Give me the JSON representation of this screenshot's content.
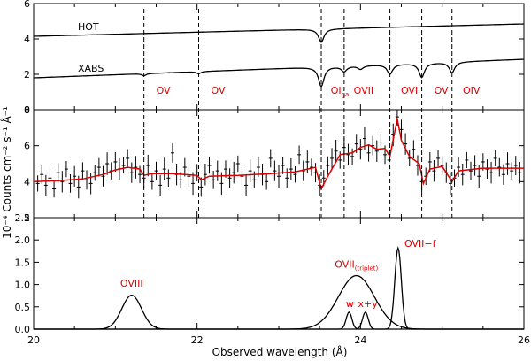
{
  "chart_data": [
    {
      "type": "line",
      "panel": "top",
      "ylim": [
        0,
        6
      ],
      "yticks": [
        "0",
        "2",
        "4",
        "6"
      ],
      "xlim": [
        20,
        26
      ],
      "series": [
        {
          "name": "HOT",
          "label": "HOT",
          "color": "#000000",
          "baseline_start": 4.15,
          "baseline_end": 4.85,
          "features": [
            {
              "center": 23.52,
              "depth": 0.75,
              "width": 0.04
            }
          ]
        },
        {
          "name": "XABS",
          "label": "XABS",
          "color": "#000000",
          "baseline_start": 1.8,
          "baseline_end": 2.85,
          "features": [
            {
              "center": 21.35,
              "depth": 0.12,
              "width": 0.03
            },
            {
              "center": 22.02,
              "depth": 0.12,
              "width": 0.03
            },
            {
              "center": 23.52,
              "depth": 1.1,
              "width": 0.04
            },
            {
              "center": 23.8,
              "depth": 0.3,
              "width": 0.04
            },
            {
              "center": 24.0,
              "depth": 0.2,
              "width": 0.04
            },
            {
              "center": 24.36,
              "depth": 0.55,
              "width": 0.04
            },
            {
              "center": 24.75,
              "depth": 0.8,
              "width": 0.04
            },
            {
              "center": 25.12,
              "depth": 0.6,
              "width": 0.04
            }
          ]
        }
      ],
      "line_ids": [
        {
          "label": "OV",
          "x": 21.35
        },
        {
          "label": "OV",
          "x": 22.02
        },
        {
          "label": "OI",
          "sub": "gal",
          "x": 23.52
        },
        {
          "label": "OVII",
          "x": 23.8
        },
        {
          "label": "OVI",
          "x": 24.36
        },
        {
          "label": "OV",
          "x": 24.75
        },
        {
          "label": "OIV",
          "x": 25.12
        }
      ]
    },
    {
      "type": "scatter",
      "panel": "middle",
      "ylabel": "10⁻⁴ Counts cm⁻² s⁻¹ Å⁻¹",
      "ylim": [
        2,
        8
      ],
      "yticks": [
        "2",
        "4",
        "6",
        "8"
      ],
      "xlim": [
        20,
        26
      ],
      "data_color": "#000000",
      "model_color": "#dd0000",
      "model_name": "model",
      "data_name": "data",
      "model": [
        [
          20.0,
          4.0
        ],
        [
          20.3,
          4.05
        ],
        [
          20.6,
          4.15
        ],
        [
          20.85,
          4.4
        ],
        [
          21.0,
          4.65
        ],
        [
          21.15,
          4.8
        ],
        [
          21.3,
          4.7
        ],
        [
          21.35,
          4.35
        ],
        [
          21.45,
          4.45
        ],
        [
          21.7,
          4.45
        ],
        [
          22.0,
          4.35
        ],
        [
          22.05,
          4.1
        ],
        [
          22.15,
          4.3
        ],
        [
          22.5,
          4.35
        ],
        [
          22.9,
          4.45
        ],
        [
          23.2,
          4.55
        ],
        [
          23.45,
          4.8
        ],
        [
          23.52,
          3.6
        ],
        [
          23.6,
          4.3
        ],
        [
          23.75,
          5.5
        ],
        [
          23.9,
          5.6
        ],
        [
          24.0,
          5.9
        ],
        [
          24.1,
          6.05
        ],
        [
          24.2,
          5.8
        ],
        [
          24.3,
          5.85
        ],
        [
          24.36,
          5.4
        ],
        [
          24.45,
          7.5
        ],
        [
          24.5,
          6.3
        ],
        [
          24.6,
          5.4
        ],
        [
          24.72,
          5.0
        ],
        [
          24.77,
          3.9
        ],
        [
          24.85,
          4.7
        ],
        [
          25.0,
          4.85
        ],
        [
          25.12,
          4.0
        ],
        [
          25.2,
          4.6
        ],
        [
          25.5,
          4.75
        ],
        [
          26.0,
          4.75
        ]
      ],
      "data_points": [
        [
          20.05,
          3.9
        ],
        [
          20.1,
          4.4
        ],
        [
          20.15,
          3.8
        ],
        [
          20.2,
          4.2
        ],
        [
          20.25,
          3.6
        ],
        [
          20.3,
          4.5
        ],
        [
          20.35,
          4.0
        ],
        [
          20.4,
          4.7
        ],
        [
          20.45,
          3.9
        ],
        [
          20.5,
          4.3
        ],
        [
          20.55,
          3.7
        ],
        [
          20.6,
          4.6
        ],
        [
          20.65,
          4.1
        ],
        [
          20.7,
          3.9
        ],
        [
          20.75,
          4.5
        ],
        [
          20.8,
          4.8
        ],
        [
          20.85,
          4.3
        ],
        [
          20.9,
          5.0
        ],
        [
          20.95,
          4.6
        ],
        [
          21.0,
          5.1
        ],
        [
          21.05,
          4.7
        ],
        [
          21.1,
          4.9
        ],
        [
          21.15,
          5.3
        ],
        [
          21.2,
          4.5
        ],
        [
          21.25,
          4.8
        ],
        [
          21.3,
          4.4
        ],
        [
          21.35,
          4.2
        ],
        [
          21.4,
          4.9
        ],
        [
          21.45,
          4.0
        ],
        [
          21.5,
          4.6
        ],
        [
          21.55,
          3.8
        ],
        [
          21.6,
          4.7
        ],
        [
          21.65,
          4.2
        ],
        [
          21.7,
          5.6
        ],
        [
          21.75,
          4.4
        ],
        [
          21.8,
          4.1
        ],
        [
          21.85,
          4.8
        ],
        [
          21.9,
          4.3
        ],
        [
          21.95,
          3.9
        ],
        [
          22.0,
          4.5
        ],
        [
          22.05,
          3.7
        ],
        [
          22.1,
          4.4
        ],
        [
          22.15,
          4.9
        ],
        [
          22.2,
          4.1
        ],
        [
          22.25,
          4.6
        ],
        [
          22.3,
          3.9
        ],
        [
          22.35,
          4.7
        ],
        [
          22.4,
          4.2
        ],
        [
          22.45,
          4.5
        ],
        [
          22.5,
          5.0
        ],
        [
          22.55,
          4.3
        ],
        [
          22.6,
          3.8
        ],
        [
          22.65,
          4.6
        ],
        [
          22.7,
          4.1
        ],
        [
          22.75,
          4.8
        ],
        [
          22.8,
          4.4
        ],
        [
          22.85,
          4.0
        ],
        [
          22.9,
          5.3
        ],
        [
          22.95,
          4.6
        ],
        [
          23.0,
          4.3
        ],
        [
          23.05,
          4.9
        ],
        [
          23.1,
          4.2
        ],
        [
          23.15,
          4.7
        ],
        [
          23.2,
          4.4
        ],
        [
          23.25,
          5.5
        ],
        [
          23.3,
          4.6
        ],
        [
          23.35,
          5.1
        ],
        [
          23.4,
          4.8
        ],
        [
          23.45,
          4.5
        ],
        [
          23.5,
          3.8
        ],
        [
          23.55,
          4.2
        ],
        [
          23.6,
          4.9
        ],
        [
          23.65,
          5.3
        ],
        [
          23.7,
          5.7
        ],
        [
          23.75,
          5.2
        ],
        [
          23.8,
          5.9
        ],
        [
          23.85,
          5.5
        ],
        [
          23.9,
          5.4
        ],
        [
          23.95,
          6.1
        ],
        [
          24.0,
          5.8
        ],
        [
          24.05,
          6.4
        ],
        [
          24.1,
          5.6
        ],
        [
          24.15,
          6.0
        ],
        [
          24.2,
          5.7
        ],
        [
          24.25,
          6.2
        ],
        [
          24.3,
          5.5
        ],
        [
          24.35,
          5.2
        ],
        [
          24.4,
          6.6
        ],
        [
          24.45,
          7.6
        ],
        [
          24.5,
          6.9
        ],
        [
          24.55,
          6.1
        ],
        [
          24.6,
          5.3
        ],
        [
          24.65,
          5.8
        ],
        [
          24.7,
          4.9
        ],
        [
          24.75,
          4.0
        ],
        [
          24.8,
          4.3
        ],
        [
          24.85,
          5.1
        ],
        [
          24.9,
          4.6
        ],
        [
          24.95,
          5.3
        ],
        [
          25.0,
          4.9
        ],
        [
          25.05,
          4.5
        ],
        [
          25.1,
          3.9
        ],
        [
          25.15,
          4.2
        ],
        [
          25.2,
          4.8
        ],
        [
          25.25,
          4.4
        ],
        [
          25.3,
          5.2
        ],
        [
          25.35,
          4.6
        ],
        [
          25.4,
          4.9
        ],
        [
          25.45,
          4.3
        ],
        [
          25.5,
          5.1
        ],
        [
          25.55,
          4.7
        ],
        [
          25.6,
          4.5
        ],
        [
          25.65,
          5.3
        ],
        [
          25.7,
          4.8
        ],
        [
          25.75,
          4.4
        ],
        [
          25.8,
          5.0
        ],
        [
          25.85,
          4.6
        ],
        [
          25.9,
          4.9
        ],
        [
          25.95,
          4.5
        ]
      ]
    },
    {
      "type": "line",
      "panel": "bottom",
      "xlabel": "Observed wavelength (Å)",
      "xlim": [
        20,
        26
      ],
      "xticks": [
        "20",
        "22",
        "24",
        "26"
      ],
      "ylim": [
        0,
        2.5
      ],
      "yticks": [
        "0.0",
        "0.5",
        "1.0",
        "1.5",
        "2.0",
        "2.5"
      ],
      "series": [
        {
          "name": "OVIII",
          "label": "OVIII",
          "color": "#000000",
          "center": 21.2,
          "amplitude": 0.76,
          "sigma": 0.12
        },
        {
          "name": "OVII triplet envelope",
          "color": "#000000",
          "center": 23.95,
          "amplitude": 1.2,
          "sigma": 0.22
        },
        {
          "name": "OVII lines",
          "color": "#000000",
          "components": [
            {
              "center": 23.86,
              "amplitude": 0.38,
              "sigma": 0.035
            },
            {
              "center": 24.06,
              "amplitude": 0.38,
              "sigma": 0.035
            },
            {
              "center": 24.46,
              "amplitude": 1.82,
              "sigma": 0.04
            }
          ]
        }
      ],
      "annotations": [
        {
          "label": "OVIII",
          "x": 21.2,
          "y": 0.95
        },
        {
          "label": "OVII",
          "sub": "(triplet)",
          "x": 23.95,
          "y": 1.38
        },
        {
          "label": "w",
          "x": 23.87,
          "y": 0.5
        },
        {
          "label": "x+y",
          "x": 24.09,
          "y": 0.5
        },
        {
          "label": "OVII−f",
          "x": 24.73,
          "y": 1.85
        }
      ]
    }
  ]
}
